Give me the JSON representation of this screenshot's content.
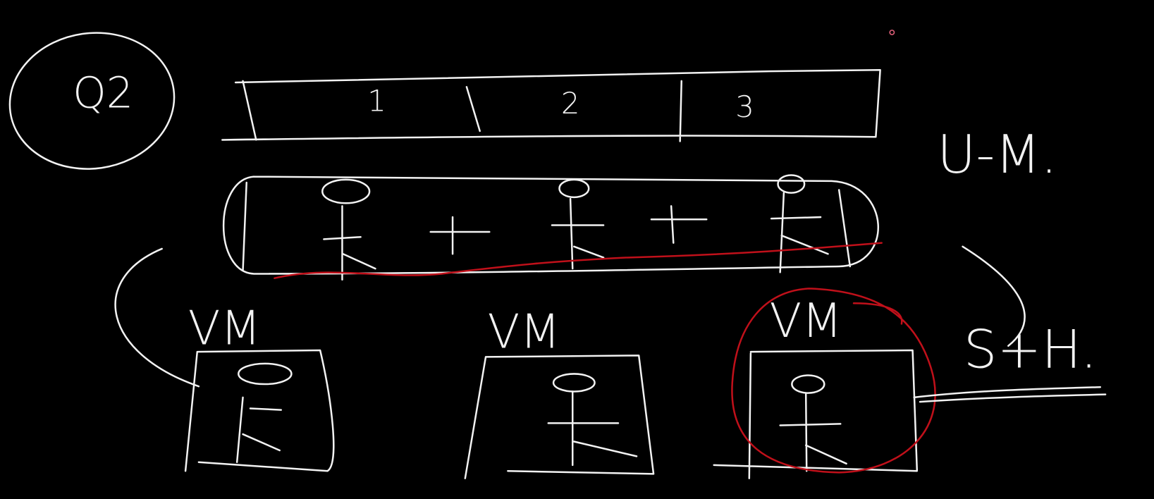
{
  "badge": "Q2",
  "bar": {
    "cells": [
      "1",
      "2",
      "3"
    ]
  },
  "side_label": "U-M.",
  "nodes": [
    {
      "label": "VM"
    },
    {
      "label": "VM"
    },
    {
      "label": "VM"
    }
  ],
  "note": "S+H."
}
